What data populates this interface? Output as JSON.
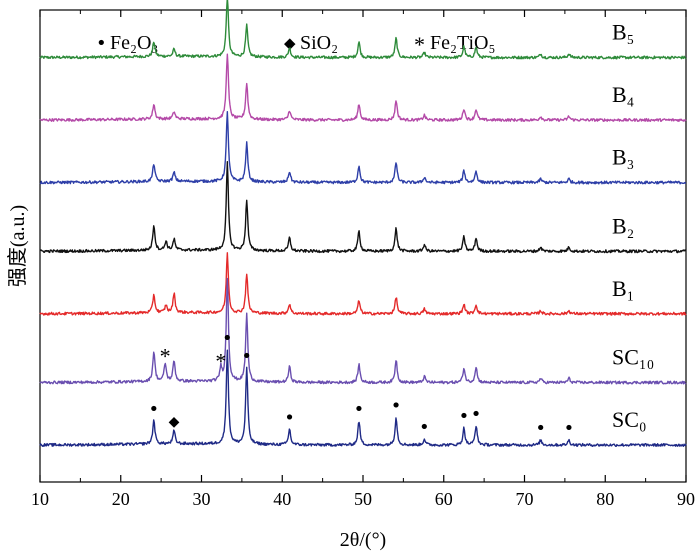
{
  "chart_data": {
    "type": "line",
    "title": "",
    "xlabel": "2θ/(°)",
    "ylabel": "强度(a.u.)",
    "xlim": [
      10,
      90
    ],
    "xticks": [
      10,
      20,
      30,
      40,
      50,
      60,
      70,
      80,
      90
    ],
    "tick_labels": [
      "10",
      "20",
      "30",
      "40",
      "50",
      "60",
      "70",
      "80",
      "90"
    ],
    "legend": [
      {
        "symbol": "•",
        "label": "Fe₂O₃"
      },
      {
        "symbol": "◆",
        "label": "SiO₂"
      },
      {
        "symbol": "*",
        "label": "Fe₂TiO₅"
      }
    ],
    "series": [
      {
        "name": "B₅",
        "color": "#2e8b3a",
        "offset": 6.2,
        "peaks": [
          [
            24.1,
            0.25
          ],
          [
            26.6,
            0.12
          ],
          [
            33.2,
            1.0
          ],
          [
            35.6,
            0.52
          ],
          [
            40.9,
            0.16
          ],
          [
            49.5,
            0.26
          ],
          [
            54.1,
            0.32
          ],
          [
            57.6,
            0.08
          ],
          [
            62.5,
            0.18
          ],
          [
            64.0,
            0.17
          ],
          [
            72.0,
            0.06
          ],
          [
            75.5,
            0.06
          ]
        ]
      },
      {
        "name": "B₄",
        "color": "#b44aa8",
        "offset": 5.2,
        "peaks": [
          [
            24.1,
            0.25
          ],
          [
            26.6,
            0.12
          ],
          [
            33.2,
            1.1
          ],
          [
            35.6,
            0.6
          ],
          [
            40.9,
            0.16
          ],
          [
            49.5,
            0.27
          ],
          [
            54.1,
            0.33
          ],
          [
            57.6,
            0.08
          ],
          [
            62.5,
            0.19
          ],
          [
            64.0,
            0.18
          ],
          [
            72.0,
            0.06
          ],
          [
            75.5,
            0.06
          ]
        ]
      },
      {
        "name": "B₃",
        "color": "#2e3fa8",
        "offset": 4.2,
        "peaks": [
          [
            24.1,
            0.3
          ],
          [
            26.6,
            0.15
          ],
          [
            33.2,
            1.15
          ],
          [
            35.6,
            0.64
          ],
          [
            40.9,
            0.18
          ],
          [
            49.5,
            0.28
          ],
          [
            54.1,
            0.34
          ],
          [
            57.6,
            0.09
          ],
          [
            62.5,
            0.2
          ],
          [
            64.0,
            0.19
          ],
          [
            72.0,
            0.06
          ],
          [
            75.5,
            0.06
          ]
        ]
      },
      {
        "name": "B₂",
        "color": "#111111",
        "offset": 3.1,
        "peaks": [
          [
            24.1,
            0.42
          ],
          [
            25.6,
            0.15
          ],
          [
            26.6,
            0.18
          ],
          [
            33.2,
            1.45
          ],
          [
            35.6,
            0.84
          ],
          [
            40.9,
            0.22
          ],
          [
            49.5,
            0.34
          ],
          [
            54.1,
            0.38
          ],
          [
            57.6,
            0.11
          ],
          [
            62.5,
            0.24
          ],
          [
            64.0,
            0.22
          ],
          [
            72.0,
            0.07
          ],
          [
            75.5,
            0.07
          ]
        ]
      },
      {
        "name": "B₁",
        "color": "#e42a2a",
        "offset": 2.1,
        "peaks": [
          [
            24.1,
            0.3
          ],
          [
            25.6,
            0.12
          ],
          [
            26.6,
            0.32
          ],
          [
            33.2,
            0.98
          ],
          [
            35.6,
            0.66
          ],
          [
            40.9,
            0.16
          ],
          [
            49.5,
            0.22
          ],
          [
            54.1,
            0.28
          ],
          [
            57.6,
            0.08
          ],
          [
            62.5,
            0.16
          ],
          [
            64.0,
            0.15
          ],
          [
            72.0,
            0.05
          ],
          [
            75.5,
            0.05
          ]
        ]
      },
      {
        "name": "SC₁₀",
        "color": "#6a4fb0",
        "offset": 1.0,
        "peaks": [
          [
            24.1,
            0.5
          ],
          [
            25.5,
            0.3
          ],
          [
            26.6,
            0.34
          ],
          [
            32.4,
            0.22
          ],
          [
            33.2,
            1.72
          ],
          [
            35.6,
            1.12
          ],
          [
            40.9,
            0.26
          ],
          [
            49.5,
            0.3
          ],
          [
            54.1,
            0.38
          ],
          [
            57.6,
            0.1
          ],
          [
            62.5,
            0.24
          ],
          [
            64.0,
            0.26
          ],
          [
            72.0,
            0.07
          ],
          [
            75.5,
            0.07
          ]
        ]
      },
      {
        "name": "SC₀",
        "color": "#1f2a86",
        "offset": 0.0,
        "peaks": [
          [
            24.1,
            0.4
          ],
          [
            26.6,
            0.22
          ],
          [
            33.2,
            1.58
          ],
          [
            35.6,
            1.28
          ],
          [
            40.9,
            0.26
          ],
          [
            49.5,
            0.4
          ],
          [
            54.1,
            0.46
          ],
          [
            57.6,
            0.1
          ],
          [
            62.5,
            0.28
          ],
          [
            64.0,
            0.32
          ],
          [
            72.0,
            0.08
          ],
          [
            75.5,
            0.08
          ]
        ]
      }
    ],
    "annotations": [
      {
        "series": "SC₁₀",
        "symbol": "*",
        "x": 25.5
      },
      {
        "series": "SC₁₀",
        "symbol": "*",
        "x": 32.4
      },
      {
        "series": "SC₀",
        "symbol": "•",
        "x": 24.1
      },
      {
        "series": "SC₀",
        "symbol": "◆",
        "x": 26.6
      },
      {
        "series": "SC₀",
        "symbol": "•",
        "x": 33.2
      },
      {
        "series": "SC₀",
        "symbol": "•",
        "x": 35.6
      },
      {
        "series": "SC₀",
        "symbol": "•",
        "x": 40.9
      },
      {
        "series": "SC₀",
        "symbol": "•",
        "x": 49.5
      },
      {
        "series": "SC₀",
        "symbol": "•",
        "x": 54.1
      },
      {
        "series": "SC₀",
        "symbol": "•",
        "x": 57.6
      },
      {
        "series": "SC₀",
        "symbol": "•",
        "x": 62.5
      },
      {
        "series": "SC₀",
        "symbol": "•",
        "x": 64.0
      },
      {
        "series": "SC₀",
        "symbol": "•",
        "x": 72.0
      },
      {
        "series": "SC₀",
        "symbol": "•",
        "x": 75.5
      }
    ]
  }
}
